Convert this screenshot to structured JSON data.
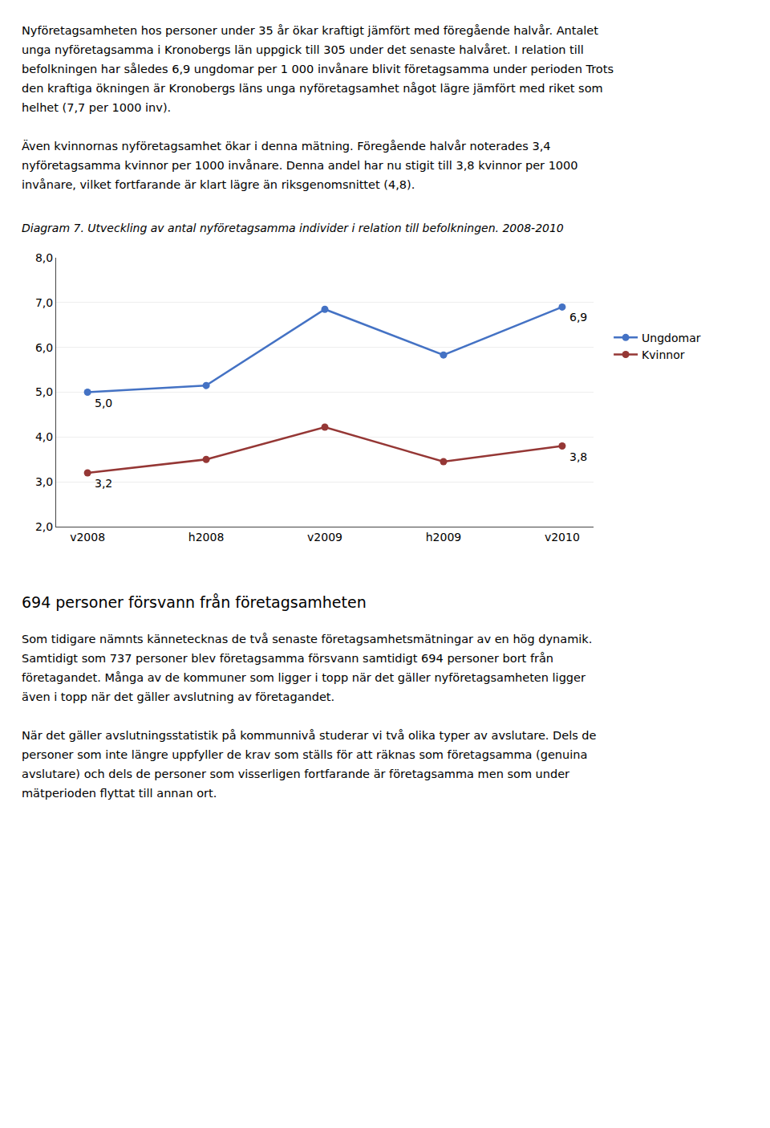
{
  "paragraphs_before": [
    [
      "Nyföretagsamheten hos personer under 35 år ökar kraftigt jämfört med föregående halvår. Antalet",
      "unga nyföretagsamma i Kronobergs län uppgick till 305 under det senaste halvåret. I relation till",
      "befolkningen har således 6,9 ungdomar per 1 000 invånare blivit företagsamma under perioden Trots",
      "den kraftiga ökningen är Kronobergs läns unga nyföretagsamhet något lägre jämfört med riket som",
      "helhet (7,7 per 1000 inv)."
    ],
    [
      "Även kvinnornas nyföretagsamhet ökar i denna mätning. Föregående halvår noterades 3,4",
      "nyföretagsamma kvinnor per 1000 invånare. Denna andel har nu stigit till 3,8 kvinnor per 1000",
      "invånare, vilket fortfarande är klart lägre än riksgenomsnittet (4,8)."
    ]
  ],
  "chart_data": {
    "type": "line",
    "title": "Diagram 7. Utveckling av antal nyföretagsamma individer i relation till befolkningen. 2008-2010",
    "categories": [
      "v2008",
      "h2008",
      "v2009",
      "h2009",
      "v2010"
    ],
    "series": [
      {
        "name": "Ungdomar",
        "color": "#4472c4",
        "marker": "circle",
        "line_style": "solid",
        "values": [
          5.0,
          5.15,
          6.85,
          5.83,
          6.9
        ],
        "value_labels": [
          "5,0",
          null,
          null,
          null,
          "6,9"
        ]
      },
      {
        "name": "Kvinnor",
        "color": "#953735",
        "marker": "circle",
        "line_style": "solid",
        "values": [
          3.2,
          3.5,
          4.22,
          3.45,
          3.8
        ],
        "value_labels": [
          "3,2",
          null,
          null,
          null,
          "3,8"
        ]
      }
    ],
    "ylim": [
      2.0,
      8.0
    ],
    "yticks": [
      {
        "value": 2.0,
        "label": "2,0"
      },
      {
        "value": 3.0,
        "label": "3,0"
      },
      {
        "value": 4.0,
        "label": "4,0"
      },
      {
        "value": 5.0,
        "label": "5,0"
      },
      {
        "value": 6.0,
        "label": "6,0"
      },
      {
        "value": 7.0,
        "label": "7,0"
      },
      {
        "value": 8.0,
        "label": "8,0"
      }
    ],
    "grid": true,
    "legend": "right"
  },
  "heading": "694 personer försvann från företagsamheten",
  "paragraphs_after": [
    [
      "Som tidigare nämnts kännetecknas de två senaste företagsamhetsmätningar av en hög dynamik.",
      "Samtidigt som 737 personer blev företagsamma försvann samtidigt 694 personer bort från",
      "företagandet. Många av de kommuner som ligger i topp när det gäller nyföretagsamheten ligger",
      "även i topp när det gäller avslutning av företagandet."
    ],
    [
      "När det gäller avslutningsstatistik på kommunnivå studerar vi två olika typer av avslutare. Dels de",
      "personer som inte längre uppfyller de krav som ställs för att räknas som företagsamma (genuina",
      "avslutare) och dels de personer som visserligen fortfarande är företagsamma men som under",
      "mätperioden flyttat till annan ort."
    ]
  ]
}
